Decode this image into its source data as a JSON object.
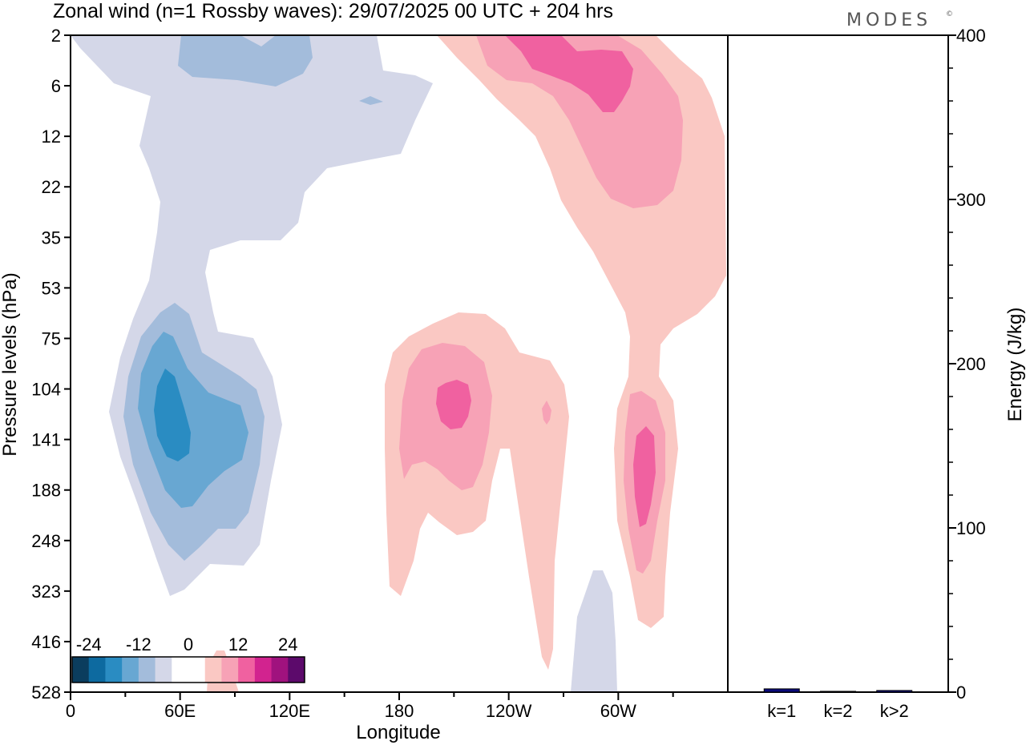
{
  "chart_data": [
    {
      "type": "contour",
      "title": "Zonal wind (n=1 Rossby waves):  29/07/2025  00 UTC  + 204 hrs",
      "xlabel": "Longitude",
      "ylabel": "Pressure levels (hPa)",
      "x_ticks": [
        "0",
        "60E",
        "120E",
        "180",
        "120W",
        "60W"
      ],
      "y_ticks": [
        "2",
        "6",
        "12",
        "22",
        "35",
        "53",
        "75",
        "104",
        "141",
        "188",
        "248",
        "323",
        "416",
        "528"
      ],
      "colorbar": {
        "labels": [
          "-24",
          "-12",
          "0",
          "12",
          "24"
        ],
        "colors": [
          "#0b3d5e",
          "#0d6aa0",
          "#2a8cc2",
          "#68a7d2",
          "#a3bcdb",
          "#d4d7e8",
          "#ffffff",
          "#ffffff",
          "#fac8c3",
          "#f7a2b6",
          "#f061a0",
          "#d2238f",
          "#a0127e",
          "#5c0a6b"
        ]
      }
    },
    {
      "type": "bar",
      "ylabel": "Energy (J/kg)",
      "ylim": [
        0,
        400
      ],
      "y_ticks": [
        "0",
        "100",
        "200",
        "300",
        "400"
      ],
      "categories": [
        "k=1",
        "k=2",
        "k>2"
      ],
      "values": [
        2,
        0.5,
        1
      ]
    }
  ],
  "brand": {
    "text": "MODES",
    "mark": "©"
  }
}
